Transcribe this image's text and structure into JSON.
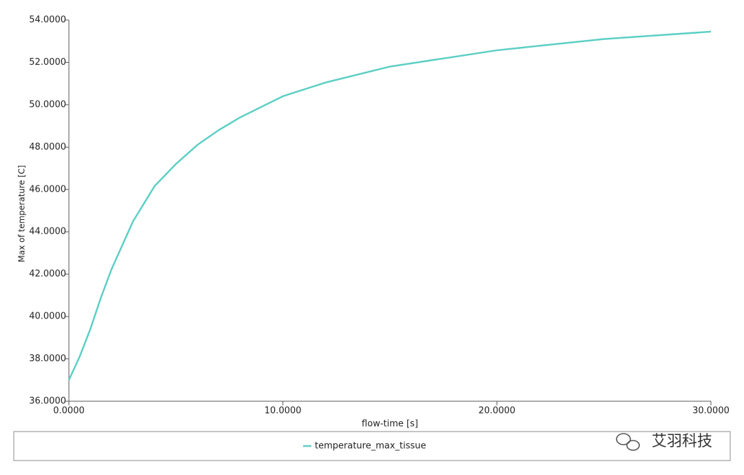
{
  "chart_data": {
    "type": "line",
    "x_label": "flow-time [s]",
    "y_label": "Max of temperature [C]",
    "x": [
      0,
      0.5,
      1,
      1.5,
      2,
      3,
      4,
      5,
      6,
      7,
      8,
      10,
      12,
      15,
      20,
      25,
      30
    ],
    "series": [
      {
        "name": "temperature_max_tissue",
        "color": "#5ccfc4",
        "values": [
          37.0,
          38.1,
          39.4,
          40.9,
          42.25,
          44.5,
          46.15,
          47.2,
          48.1,
          48.8,
          49.4,
          50.4,
          51.05,
          51.8,
          52.57,
          53.1,
          53.45
        ]
      }
    ],
    "xlim": [
      0,
      30
    ],
    "xticks": [
      {
        "value": 0,
        "label": "0.0000"
      },
      {
        "value": 10,
        "label": "10.0000"
      },
      {
        "value": 20,
        "label": "20.0000"
      },
      {
        "value": 30,
        "label": "30.0000"
      }
    ],
    "ylim": [
      36,
      54
    ],
    "yticks": [
      {
        "value": 36,
        "label": "36.0000"
      },
      {
        "value": 38,
        "label": "38.0000"
      },
      {
        "value": 40,
        "label": "40.0000"
      },
      {
        "value": 42,
        "label": "42.0000"
      },
      {
        "value": 44,
        "label": "44.0000"
      },
      {
        "value": 46,
        "label": "46.0000"
      },
      {
        "value": 48,
        "label": "48.0000"
      },
      {
        "value": 50,
        "label": "50.0000"
      },
      {
        "value": 52,
        "label": "52.0000"
      },
      {
        "value": 54,
        "label": "54.0000"
      }
    ],
    "grid": false,
    "legend": "bottom",
    "watermark": "艾羽科技"
  }
}
